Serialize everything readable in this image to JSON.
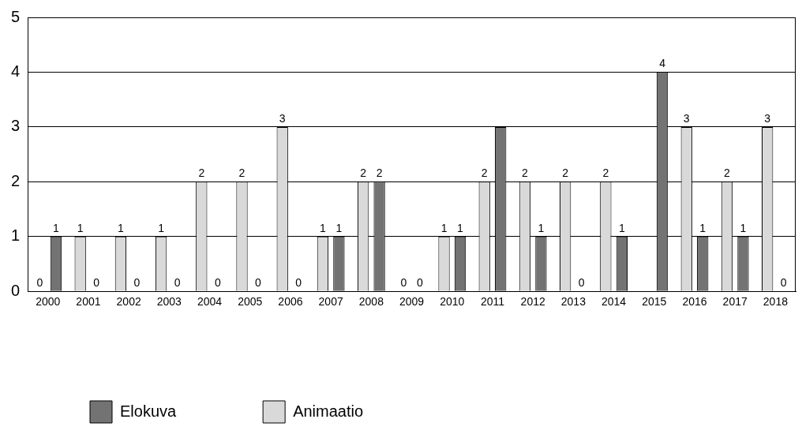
{
  "chart_data": {
    "type": "bar",
    "categories": [
      "2000",
      "2001",
      "2002",
      "2003",
      "2004",
      "2005",
      "2006",
      "2007",
      "2008",
      "2009",
      "2010",
      "2011",
      "2012",
      "2013",
      "2014",
      "2015",
      "2016",
      "2017",
      "2018"
    ],
    "series": [
      {
        "name": "Animaatio",
        "color": "#d9d9d9",
        "values": [
          0,
          1,
          1,
          1,
          2,
          2,
          3,
          1,
          2,
          0,
          1,
          2,
          2,
          2,
          2,
          null,
          3,
          2,
          3
        ],
        "value_labels": [
          "0",
          "1",
          "1",
          "1",
          "2",
          "2",
          "3",
          "1",
          "2",
          "0",
          "1",
          "2",
          "2",
          "2",
          "2",
          null,
          "3",
          "2",
          "3"
        ]
      },
      {
        "name": "Elokuva",
        "color": "#737373",
        "values": [
          1,
          0,
          0,
          0,
          0,
          0,
          0,
          1,
          2,
          0,
          1,
          3,
          1,
          0,
          1,
          4,
          1,
          1,
          0
        ],
        "value_labels": [
          "1",
          "0",
          "0",
          "0",
          "0",
          "0",
          "0",
          "1",
          "2",
          "0",
          "1",
          null,
          "1",
          "0",
          "1",
          "4",
          "1",
          "1",
          "0"
        ]
      }
    ],
    "ylim": [
      0,
      5
    ],
    "yticks": [
      0,
      1,
      2,
      3,
      4,
      5
    ],
    "grid": "y",
    "legend": "bottom left"
  }
}
